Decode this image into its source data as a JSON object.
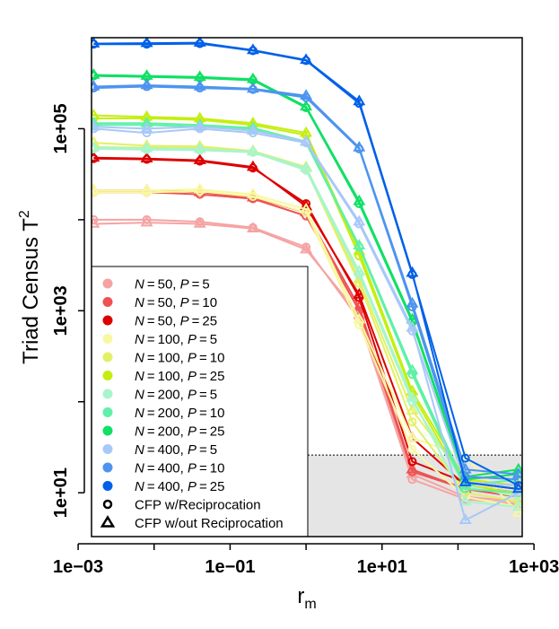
{
  "chart_data": {
    "type": "line",
    "log_x": true,
    "log_y": true,
    "xlim": [
      0.0015,
      700
    ],
    "ylim": [
      3.3,
      1000000
    ],
    "xlabel_main": "r",
    "xlabel_sub": "m",
    "ylabel_main": "Triad Census T",
    "ylabel_sup": "2",
    "x_ticks": [
      {
        "value": 0.001,
        "label": "1e−03"
      },
      {
        "value": 0.1,
        "label": "1e−01"
      },
      {
        "value": 10,
        "label": "1e+01"
      },
      {
        "value": 1000,
        "label": "1e+03"
      }
    ],
    "y_ticks": [
      {
        "value": 10,
        "label": "1e+01"
      },
      {
        "value": 1000,
        "label": "1e+03"
      },
      {
        "value": 100000,
        "label": "1e+05"
      }
    ],
    "threshold_y": 26,
    "x": [
      0.0016,
      0.008,
      0.04,
      0.2,
      1,
      5,
      25,
      125,
      625
    ],
    "legend": {
      "series_labels": [
        {
          "n": "50",
          "p": "5"
        },
        {
          "n": "50",
          "p": "10"
        },
        {
          "n": "50",
          "p": "25"
        },
        {
          "n": "100",
          "p": "5"
        },
        {
          "n": "100",
          "p": "10"
        },
        {
          "n": "100",
          "p": "25"
        },
        {
          "n": "200",
          "p": "5"
        },
        {
          "n": "200",
          "p": "10"
        },
        {
          "n": "200",
          "p": "25"
        },
        {
          "n": "400",
          "p": "5"
        },
        {
          "n": "400",
          "p": "10"
        },
        {
          "n": "400",
          "p": "25"
        }
      ],
      "symbol_labels": [
        {
          "shape": "circle",
          "label": "CFP w/Reciprocation"
        },
        {
          "shape": "triangle",
          "label": "CFP w/out Reciprocation"
        }
      ]
    },
    "series": [
      {
        "name": "N = 50, P = 5",
        "color": "#f5a3a3",
        "circle": [
          10000,
          10000,
          9500,
          8200,
          5000,
          800,
          14,
          8.5,
          7.5
        ],
        "triangle": [
          9000,
          9300,
          9000,
          8000,
          4700,
          900,
          16,
          9,
          8
        ]
      },
      {
        "name": "N = 50, P = 10",
        "color": "#ee5252",
        "circle": [
          20000,
          20000,
          19000,
          17000,
          11000,
          1000,
          17,
          11,
          9
        ],
        "triangle": [
          21000,
          21000,
          20000,
          17500,
          12000,
          1100,
          18,
          11,
          10
        ]
      },
      {
        "name": "N = 50, P = 25",
        "color": "#dd0000",
        "circle": [
          47000,
          46000,
          44000,
          37000,
          15000,
          1400,
          22,
          13,
          11
        ],
        "triangle": [
          48000,
          47000,
          45000,
          38000,
          14000,
          1500,
          40,
          12,
          10
        ]
      },
      {
        "name": "N = 100, P = 5",
        "color": "#f8f8a0",
        "circle": [
          20000,
          20000,
          20500,
          18000,
          12000,
          700,
          30,
          9,
          7
        ],
        "triangle": [
          21000,
          21000,
          21500,
          19000,
          13000,
          800,
          40,
          25,
          6
        ]
      },
      {
        "name": "N = 100, P = 10",
        "color": "#e3f065",
        "circle": [
          63000,
          62000,
          62000,
          55000,
          36000,
          2000,
          60,
          10,
          8
        ],
        "triangle": [
          70000,
          65000,
          64000,
          57000,
          38000,
          2200,
          80,
          14,
          9
        ]
      },
      {
        "name": "N = 100, P = 25",
        "color": "#c5ee10",
        "circle": [
          130000,
          130000,
          125000,
          110000,
          85000,
          4000,
          120,
          12,
          10
        ],
        "triangle": [
          140000,
          135000,
          130000,
          115000,
          90000,
          4500,
          130,
          14,
          12
        ]
      },
      {
        "name": "N = 200, P = 5",
        "color": "#a8f5cc",
        "circle": [
          60000,
          59000,
          58000,
          55000,
          35000,
          2500,
          100,
          12,
          9
        ],
        "triangle": [
          62000,
          61000,
          60000,
          56000,
          37000,
          2700,
          110,
          8,
          7
        ]
      },
      {
        "name": "N = 200, P = 10",
        "color": "#60f0a8",
        "circle": [
          110000,
          110000,
          105000,
          100000,
          70000,
          5000,
          200,
          11,
          10
        ],
        "triangle": [
          115000,
          115000,
          110000,
          102000,
          72000,
          5200,
          220,
          12,
          14
        ]
      },
      {
        "name": "N = 200, P = 25",
        "color": "#10e065",
        "circle": [
          380000,
          370000,
          360000,
          340000,
          170000,
          15000,
          750,
          14,
          16
        ],
        "triangle": [
          390000,
          380000,
          370000,
          350000,
          175000,
          16000,
          800,
          15,
          18
        ]
      },
      {
        "name": "N = 400, P = 5",
        "color": "#a8c8f8",
        "circle": [
          100000,
          90000,
          100000,
          90000,
          70000,
          9000,
          600,
          13,
          12
        ],
        "triangle": [
          105000,
          100000,
          105000,
          95000,
          72000,
          9500,
          650,
          5,
          10
        ]
      },
      {
        "name": "N = 400, P = 10",
        "color": "#4d94f0",
        "circle": [
          280000,
          290000,
          280000,
          270000,
          220000,
          60000,
          1100,
          15,
          14
        ],
        "triangle": [
          290000,
          300000,
          290000,
          275000,
          230000,
          62000,
          1200,
          18,
          16
        ]
      },
      {
        "name": "N = 400, P = 25",
        "color": "#0060e8",
        "circle": [
          850000,
          850000,
          860000,
          720000,
          560000,
          190000,
          2500,
          24,
          12
        ],
        "triangle": [
          860000,
          870000,
          880000,
          730000,
          570000,
          200000,
          2600,
          13,
          11
        ]
      }
    ]
  }
}
